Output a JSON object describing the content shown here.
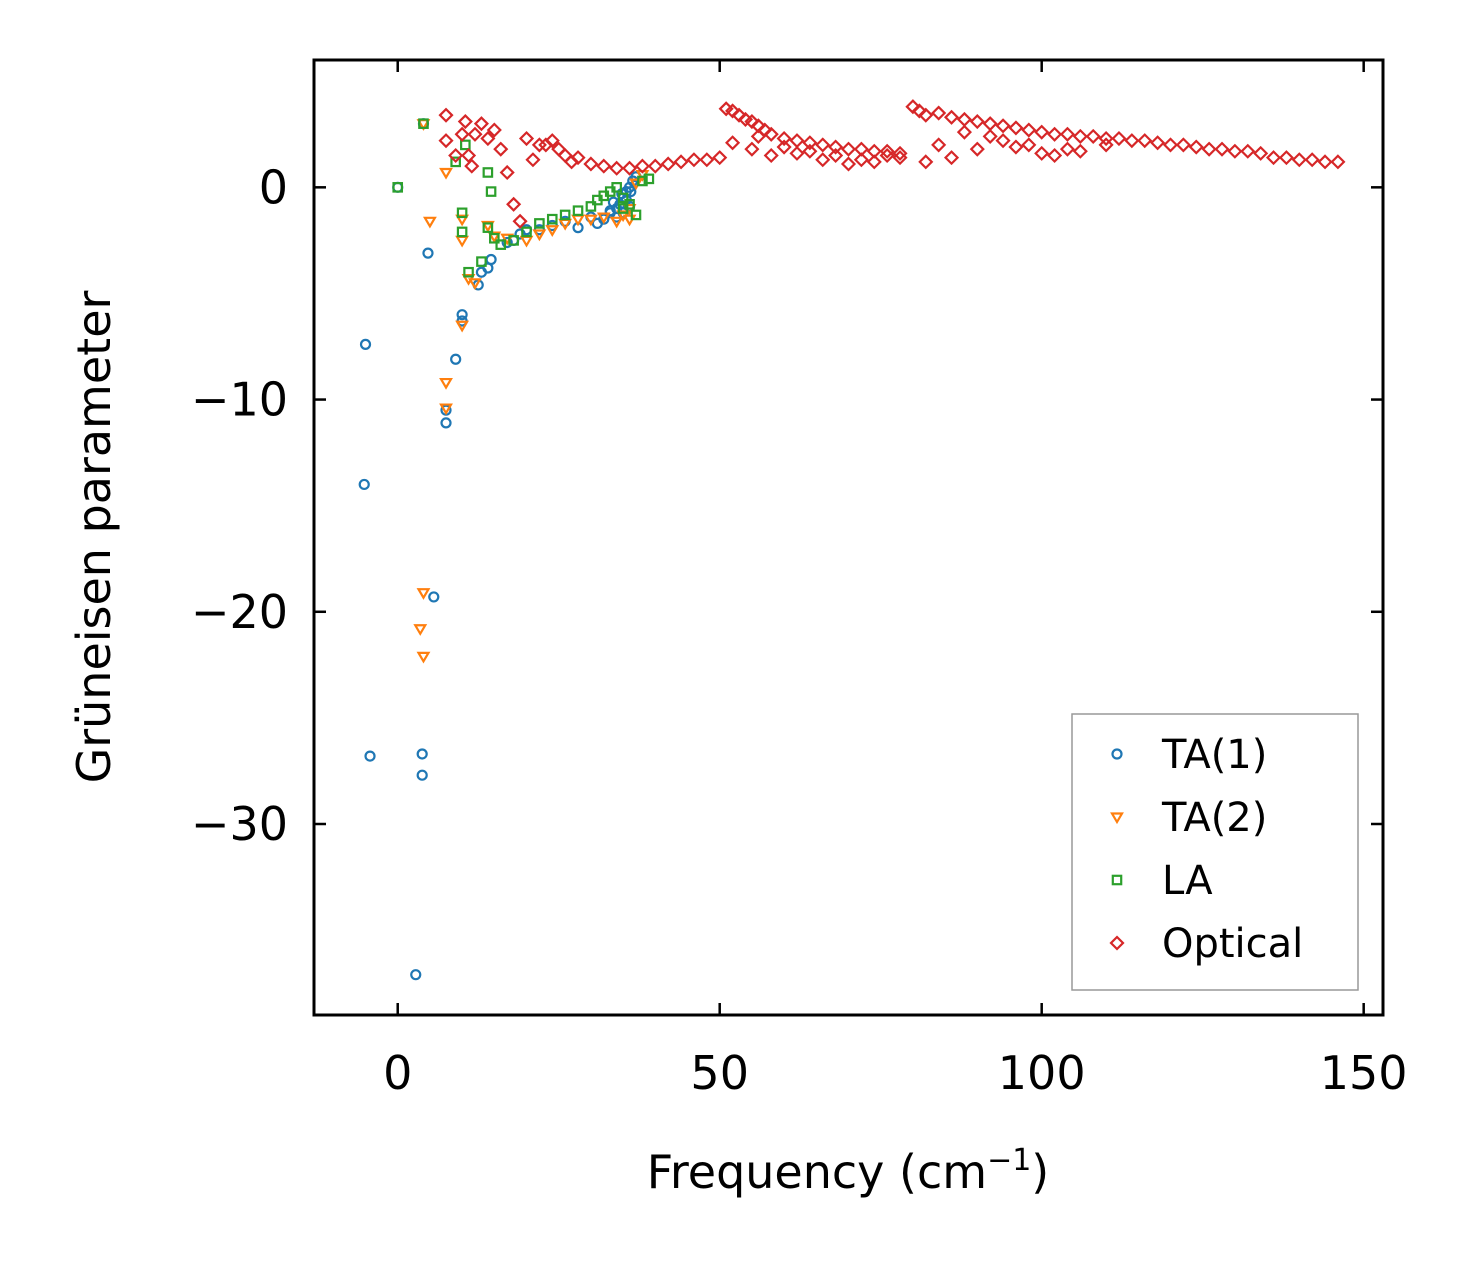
{
  "chart_data": {
    "type": "scatter",
    "title": "",
    "xlabel": "Frequency (cm",
    "xlabel_sup": "−1",
    "xlabel_close": ")",
    "ylabel": "Grüneisen parameter",
    "xlim": [
      -13,
      153
    ],
    "ylim": [
      -39,
      6
    ],
    "xticks": [
      0,
      50,
      100,
      150
    ],
    "xtick_labels": [
      "0",
      "50",
      "100",
      "150"
    ],
    "yticks": [
      0,
      -10,
      -20,
      -30
    ],
    "ytick_labels": [
      "0",
      "−10",
      "−20",
      "−30"
    ],
    "grid": false,
    "legend_position": "lower-right",
    "series": [
      {
        "name": "TA(1)",
        "marker": "circle",
        "color": "#1f77b4",
        "points": [
          [
            0,
            0
          ],
          [
            -5,
            -7.4
          ],
          [
            -5.2,
            -14
          ],
          [
            -4.3,
            -26.8
          ],
          [
            2.8,
            -37.1
          ],
          [
            3.8,
            -26.7
          ],
          [
            3.8,
            -27.7
          ],
          [
            5.6,
            -19.3
          ],
          [
            4.7,
            -3.1
          ],
          [
            4,
            3
          ],
          [
            7.5,
            -10.5
          ],
          [
            7.5,
            -11.1
          ],
          [
            9,
            -8.1
          ],
          [
            10,
            -6
          ],
          [
            10,
            -6.3
          ],
          [
            12.5,
            -4.6
          ],
          [
            13,
            -4
          ],
          [
            14,
            -3.8
          ],
          [
            14.5,
            -3.4
          ],
          [
            17,
            -2.6
          ],
          [
            18,
            -2.5
          ],
          [
            19,
            -2.2
          ],
          [
            20,
            -2
          ],
          [
            22,
            -2
          ],
          [
            24,
            -1.8
          ],
          [
            26,
            -1.6
          ],
          [
            28,
            -1.9
          ],
          [
            30,
            -1.4
          ],
          [
            31,
            -1.7
          ],
          [
            32,
            -1.5
          ],
          [
            33,
            -1.2
          ],
          [
            34,
            -1
          ],
          [
            34.5,
            -0.8
          ],
          [
            35,
            -0.5
          ],
          [
            35.5,
            -0.2
          ],
          [
            36,
            0
          ],
          [
            36.5,
            0.3
          ],
          [
            37,
            0.5
          ],
          [
            35,
            -1.2
          ],
          [
            34,
            -1.4
          ],
          [
            33,
            -1.1
          ],
          [
            36,
            -0.9
          ],
          [
            35.5,
            -0.6
          ],
          [
            34.8,
            -0.3
          ],
          [
            36.2,
            -0.2
          ],
          [
            33.5,
            -0.7
          ]
        ]
      },
      {
        "name": "TA(2)",
        "marker": "triangle-down",
        "color": "#ff7f0e",
        "points": [
          [
            4,
            3
          ],
          [
            4,
            -19.1
          ],
          [
            3.5,
            -20.8
          ],
          [
            4,
            -22.1
          ],
          [
            5,
            -1.6
          ],
          [
            7.5,
            -9.2
          ],
          [
            7.5,
            -10.4
          ],
          [
            7.5,
            0.7
          ],
          [
            10,
            -1.5
          ],
          [
            10,
            -2.5
          ],
          [
            10,
            -6.5
          ],
          [
            11,
            -4.3
          ],
          [
            12,
            -4.5
          ],
          [
            14,
            -1.8
          ],
          [
            15,
            -2.3
          ],
          [
            17,
            -2.4
          ],
          [
            20,
            -2.5
          ],
          [
            22,
            -2.2
          ],
          [
            24,
            -2
          ],
          [
            26,
            -1.7
          ],
          [
            28,
            -1.5
          ],
          [
            30,
            -1.5
          ],
          [
            32,
            -1.4
          ],
          [
            34,
            -1.6
          ],
          [
            35,
            -1.3
          ],
          [
            36,
            -1
          ],
          [
            37,
            0.2
          ],
          [
            38,
            0.6
          ],
          [
            36,
            -1.5
          ]
        ]
      },
      {
        "name": "LA",
        "marker": "square",
        "color": "#2ca02c",
        "points": [
          [
            0,
            0
          ],
          [
            4,
            3
          ],
          [
            9,
            1.2
          ],
          [
            10,
            -1.2
          ],
          [
            10,
            -2.1
          ],
          [
            10.5,
            2
          ],
          [
            11,
            -4
          ],
          [
            13,
            -3.5
          ],
          [
            14,
            0.7
          ],
          [
            14,
            -1.9
          ],
          [
            14.5,
            -0.2
          ],
          [
            15,
            -2.4
          ],
          [
            16,
            -2.7
          ],
          [
            18,
            -2.5
          ],
          [
            20,
            -2.1
          ],
          [
            22,
            -1.7
          ],
          [
            24,
            -1.5
          ],
          [
            26,
            -1.3
          ],
          [
            28,
            -1.1
          ],
          [
            30,
            -0.9
          ],
          [
            31,
            -0.6
          ],
          [
            32,
            -0.4
          ],
          [
            33,
            -0.2
          ],
          [
            34,
            0
          ],
          [
            35,
            -1
          ],
          [
            36,
            -0.8
          ],
          [
            37,
            -1.3
          ],
          [
            38,
            0.3
          ],
          [
            39,
            0.4
          ],
          [
            35,
            -0.5
          ]
        ]
      },
      {
        "name": "Optical",
        "marker": "diamond",
        "color": "#d62728",
        "points": [
          [
            7.5,
            2.2
          ],
          [
            7.5,
            3.4
          ],
          [
            9,
            1.5
          ],
          [
            10,
            2.5
          ],
          [
            10.5,
            3.1
          ],
          [
            11,
            1.5
          ],
          [
            11.5,
            1
          ],
          [
            12,
            2.5
          ],
          [
            13,
            3
          ],
          [
            14,
            2.3
          ],
          [
            15,
            2.7
          ],
          [
            16,
            1.8
          ],
          [
            17,
            0.7
          ],
          [
            18,
            -0.8
          ],
          [
            19,
            -1.6
          ],
          [
            20,
            2.3
          ],
          [
            21,
            1.3
          ],
          [
            22,
            2
          ],
          [
            23,
            2
          ],
          [
            24,
            2.2
          ],
          [
            25,
            1.8
          ],
          [
            26,
            1.5
          ],
          [
            27,
            1.2
          ],
          [
            28,
            1.4
          ],
          [
            30,
            1.1
          ],
          [
            32,
            1
          ],
          [
            34,
            0.9
          ],
          [
            36,
            0.9
          ],
          [
            38,
            1
          ],
          [
            40,
            1
          ],
          [
            42,
            1.1
          ],
          [
            44,
            1.2
          ],
          [
            46,
            1.3
          ],
          [
            48,
            1.3
          ],
          [
            50,
            1.4
          ],
          [
            51,
            3.7
          ],
          [
            52,
            3.6
          ],
          [
            53,
            3.4
          ],
          [
            54,
            3.2
          ],
          [
            55,
            3.1
          ],
          [
            56,
            2.9
          ],
          [
            57,
            2.7
          ],
          [
            58,
            2.5
          ],
          [
            60,
            2.3
          ],
          [
            62,
            2.2
          ],
          [
            64,
            2.1
          ],
          [
            66,
            2
          ],
          [
            68,
            1.9
          ],
          [
            70,
            1.8
          ],
          [
            72,
            1.8
          ],
          [
            74,
            1.7
          ],
          [
            76,
            1.7
          ],
          [
            78,
            1.6
          ],
          [
            80,
            3.8
          ],
          [
            81,
            3.6
          ],
          [
            82,
            3.4
          ],
          [
            84,
            3.5
          ],
          [
            86,
            3.3
          ],
          [
            88,
            3.2
          ],
          [
            90,
            3.1
          ],
          [
            92,
            3
          ],
          [
            94,
            2.9
          ],
          [
            96,
            2.8
          ],
          [
            98,
            2.7
          ],
          [
            100,
            2.6
          ],
          [
            102,
            2.5
          ],
          [
            104,
            2.5
          ],
          [
            106,
            2.4
          ],
          [
            108,
            2.4
          ],
          [
            110,
            2.3
          ],
          [
            112,
            2.3
          ],
          [
            114,
            2.2
          ],
          [
            116,
            2.2
          ],
          [
            118,
            2.1
          ],
          [
            120,
            2
          ],
          [
            122,
            2
          ],
          [
            124,
            1.9
          ],
          [
            126,
            1.8
          ],
          [
            128,
            1.8
          ],
          [
            130,
            1.7
          ],
          [
            132,
            1.7
          ],
          [
            134,
            1.6
          ],
          [
            136,
            1.4
          ],
          [
            138,
            1.4
          ],
          [
            140,
            1.3
          ],
          [
            142,
            1.3
          ],
          [
            144,
            1.2
          ],
          [
            146,
            1.2
          ],
          [
            52,
            2.1
          ],
          [
            55,
            1.8
          ],
          [
            58,
            1.5
          ],
          [
            62,
            1.6
          ],
          [
            66,
            1.3
          ],
          [
            70,
            1.1
          ],
          [
            74,
            1.2
          ],
          [
            78,
            1.4
          ],
          [
            82,
            1.2
          ],
          [
            86,
            1.4
          ],
          [
            90,
            1.8
          ],
          [
            94,
            2.2
          ],
          [
            98,
            2
          ],
          [
            102,
            1.5
          ],
          [
            106,
            1.7
          ],
          [
            110,
            2
          ],
          [
            56,
            2.4
          ],
          [
            60,
            1.9
          ],
          [
            64,
            1.7
          ],
          [
            68,
            1.5
          ],
          [
            72,
            1.3
          ],
          [
            76,
            1.5
          ],
          [
            84,
            2
          ],
          [
            88,
            2.6
          ],
          [
            92,
            2.4
          ],
          [
            96,
            1.9
          ],
          [
            100,
            1.6
          ],
          [
            104,
            1.8
          ]
        ]
      }
    ]
  }
}
